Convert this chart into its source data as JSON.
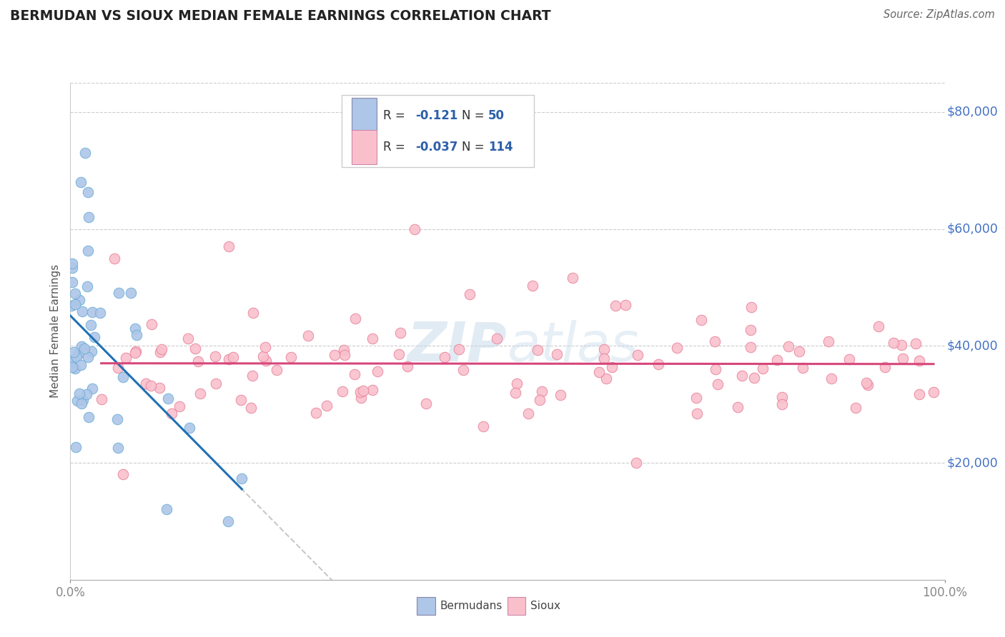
{
  "title": "BERMUDAN VS SIOUX MEDIAN FEMALE EARNINGS CORRELATION CHART",
  "source_text": "Source: ZipAtlas.com",
  "ylabel": "Median Female Earnings",
  "watermark_zip": "ZIP",
  "watermark_atlas": "atlas",
  "x_min": 0.0,
  "x_max": 1.0,
  "y_min": 0,
  "y_max": 85000,
  "yticks": [
    20000,
    40000,
    60000,
    80000
  ],
  "ytick_labels": [
    "$20,000",
    "$40,000",
    "$60,000",
    "$80,000"
  ],
  "blue_R": -0.121,
  "blue_N": 50,
  "pink_R": -0.037,
  "pink_N": 114,
  "blue_fill_color": "#aec6e8",
  "blue_edge_color": "#6baed6",
  "pink_fill_color": "#f9c0cc",
  "pink_edge_color": "#e8829a",
  "blue_line_color": "#2171b5",
  "pink_line_color": "#d6477a",
  "gray_dash_color": "#bbbbbb",
  "title_color": "#222222",
  "axis_label_color": "#555555",
  "ytick_color": "#4472c4",
  "source_color": "#666666",
  "background_color": "#ffffff",
  "grid_color": "#cccccc",
  "legend_blue_fill": "#aec6e8",
  "legend_pink_fill": "#f9c0cc",
  "legend_text_color": "#333333",
  "legend_val_color": "#2c5faa"
}
